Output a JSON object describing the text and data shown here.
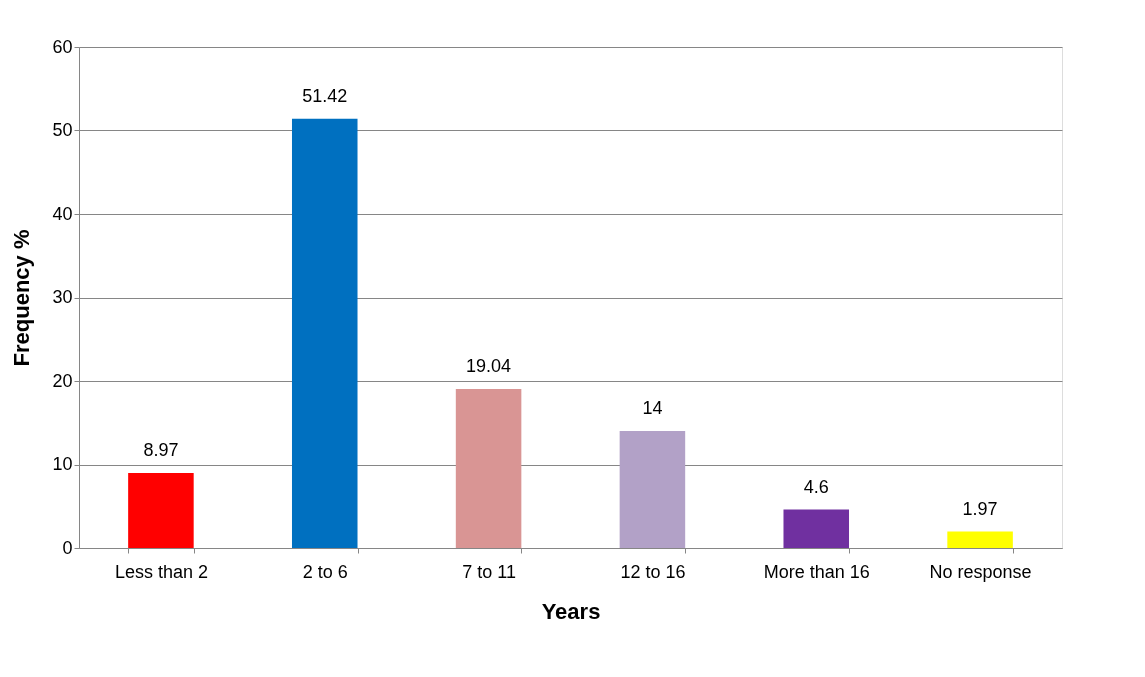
{
  "chart_data": {
    "type": "bar",
    "xlabel": "Years",
    "ylabel": "Frequency %",
    "categories": [
      "Less than 2",
      "2 to 6",
      "7 to 11",
      "12 to 16",
      "More than 16",
      "No response"
    ],
    "values": [
      8.97,
      51.42,
      19.04,
      14,
      4.6,
      1.97
    ],
    "colors": [
      "#ff0000",
      "#0070c0",
      "#d99594",
      "#b2a1c7",
      "#7030a0",
      "#ffff00"
    ],
    "ylim": [
      0,
      60
    ],
    "yticks": [
      0,
      10,
      20,
      30,
      40,
      50,
      60
    ],
    "grid": "y",
    "data_labels": true
  }
}
